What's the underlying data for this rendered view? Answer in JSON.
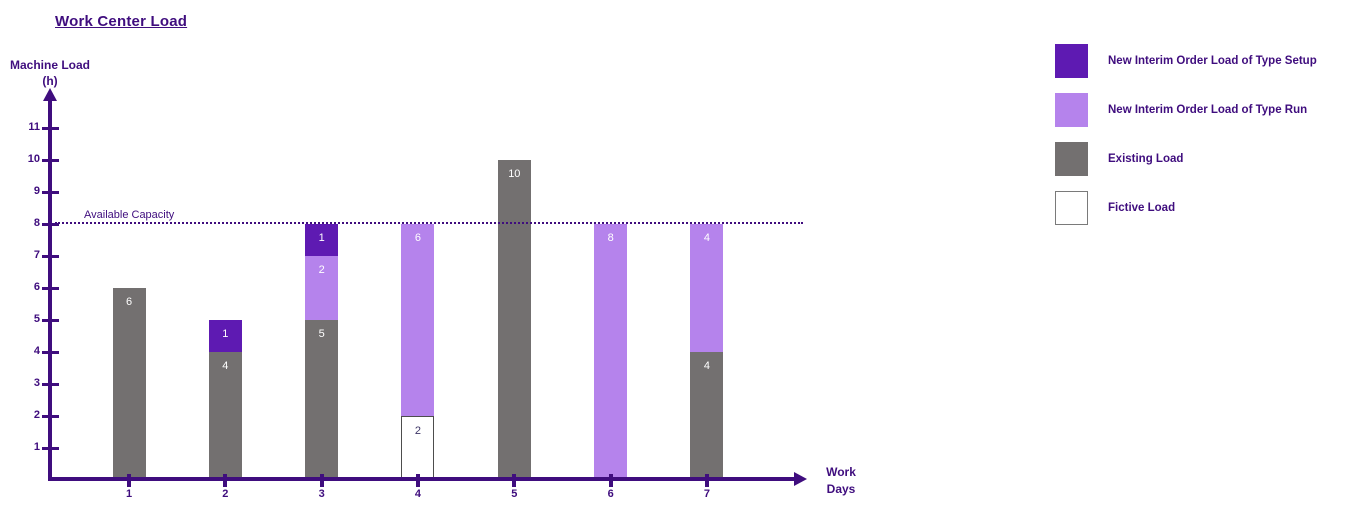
{
  "page": {
    "title": "Work Center Load"
  },
  "axes": {
    "y_label_line1": "Machine Load",
    "y_label_line2": "(h)",
    "x_label_line1": "Work",
    "x_label_line2": "Days",
    "y_ticks": [
      1,
      2,
      3,
      4,
      5,
      6,
      7,
      8,
      9,
      10,
      11
    ],
    "x_ticks": [
      "1",
      "2",
      "3",
      "4",
      "5",
      "6",
      "7"
    ]
  },
  "capacity_line": {
    "label": "Available Capacity",
    "value": 8
  },
  "legend": [
    {
      "label": "New Interim Order Load of Type Setup",
      "color": "#5e1ab2",
      "border": "none"
    },
    {
      "label": "New Interim Order Load of Type Run",
      "color": "#b583ec",
      "border": "none"
    },
    {
      "label": "Existing Load",
      "color": "#737070",
      "border": "none"
    },
    {
      "label": "Fictive Load",
      "color": "#ffffff",
      "border": "#7a7a7a"
    }
  ],
  "colors": {
    "text": "#3f0d7e",
    "axis": "#3f0d7e",
    "setup": "#5e1ab2",
    "run": "#b583ec",
    "existing": "#737070",
    "fictive": "#ffffff",
    "fictive_bar_border": "#4d4d4d"
  },
  "chart_data": {
    "type": "bar",
    "stacked": true,
    "title": "Work Center Load",
    "xlabel": "Work Days",
    "ylabel": "Machine Load (h)",
    "categories": [
      "1",
      "2",
      "3",
      "4",
      "5",
      "6",
      "7"
    ],
    "series": [
      {
        "name": "Existing Load",
        "color": "#737070",
        "label_color": "#ffffff",
        "border": "",
        "values": [
          6,
          4,
          5,
          0,
          10,
          0,
          4
        ]
      },
      {
        "name": "Fictive Load",
        "color": "#ffffff",
        "label_color": "#3d3566",
        "border": "#4d4d4d",
        "values": [
          0,
          0,
          0,
          2,
          0,
          0,
          0
        ]
      },
      {
        "name": "New Interim Order Load of Type Run",
        "color": "#b583ec",
        "label_color": "#ffffff",
        "border": "",
        "values": [
          0,
          0,
          2,
          6,
          0,
          8,
          4
        ]
      },
      {
        "name": "New Interim Order Load of Type Setup",
        "color": "#5e1ab2",
        "label_color": "#ffffff",
        "border": "",
        "values": [
          0,
          1,
          1,
          0,
          0,
          0,
          0
        ]
      }
    ],
    "stack_order_bottom_to_top": [
      "Existing Load",
      "Fictive Load",
      "New Interim Order Load of Type Run",
      "New Interim Order Load of Type Setup"
    ],
    "totals_per_day": [
      6,
      5,
      8,
      8,
      10,
      8,
      8
    ],
    "annotation": {
      "label": "Available Capacity",
      "y": 8,
      "style": "dotted-line"
    },
    "ylim": [
      0,
      12
    ],
    "yticks": [
      1,
      2,
      3,
      4,
      5,
      6,
      7,
      8,
      9,
      10,
      11
    ],
    "grid": false,
    "legend_position": "right",
    "data_labels": "inside-top-of-segment"
  }
}
